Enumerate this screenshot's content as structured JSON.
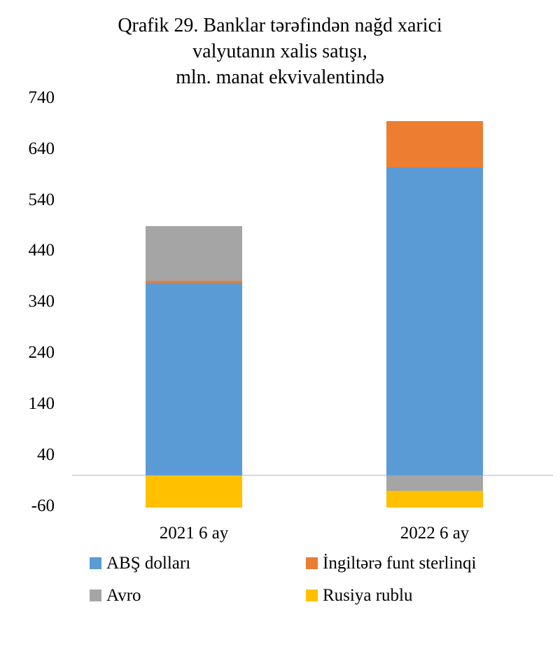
{
  "title": {
    "lines": [
      "Qrafik 29. Banklar tərəfindən nağd xarici",
      "valyutanın xalis satışı,",
      "mln. manat ekvivalentində"
    ]
  },
  "chart_data": {
    "type": "bar",
    "stacked": true,
    "title": "Qrafik 29. Banklar tərəfindən nağd xarici valyutanın xalis satışı, mln. manat ekvivalentində",
    "categories": [
      "2021 6 ay",
      "2022 6 ay"
    ],
    "series": [
      {
        "name": "ABŞ dolları",
        "color": "#5B9BD5",
        "values": [
          378,
          604
        ]
      },
      {
        "name": "İngiltərə funt sterlinqi",
        "color": "#ED7D31",
        "values": [
          4,
          90
        ]
      },
      {
        "name": "Avro",
        "color": "#A5A5A5",
        "values": [
          107,
          -30
        ]
      },
      {
        "name": "Rusiya rublu",
        "color": "#FFC000",
        "values": [
          -64,
          -34
        ]
      }
    ],
    "ylim": [
      -60,
      740
    ],
    "yticks": [
      740,
      640,
      540,
      440,
      340,
      240,
      140,
      40,
      -60
    ],
    "grid": "horizontal zero line only",
    "gridline_color": "#D9D9D9",
    "legend_position": "bottom"
  }
}
